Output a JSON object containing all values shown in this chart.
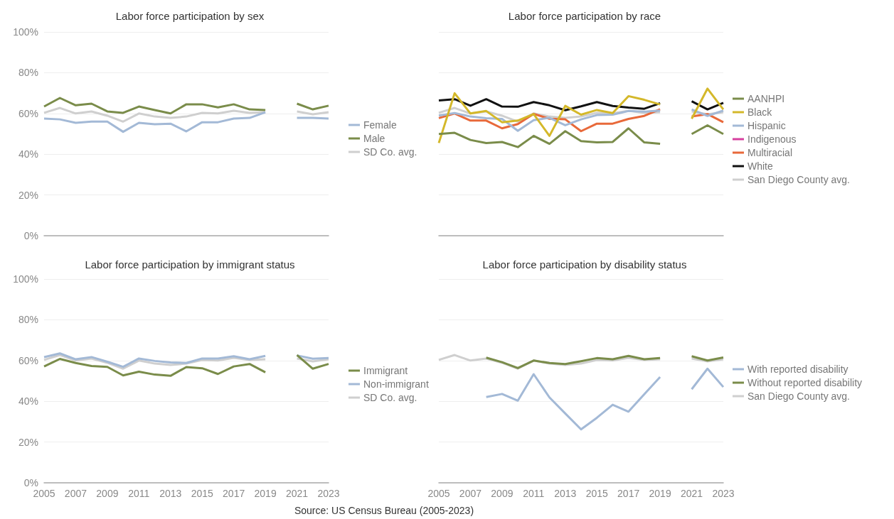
{
  "chart_data": [
    {
      "type": "line",
      "title": "Labor force participation by sex",
      "x": [
        2005,
        2006,
        2007,
        2008,
        2009,
        2010,
        2011,
        2012,
        2013,
        2014,
        2015,
        2016,
        2017,
        2018,
        2019,
        2020,
        2021,
        2022,
        2023
      ],
      "xlim": [
        2005,
        2023
      ],
      "xticks": [
        2005,
        2007,
        2009,
        2011,
        2013,
        2015,
        2017,
        2019,
        2021,
        2023
      ],
      "ylim": [
        0,
        100
      ],
      "yticks": [
        {
          "value": 0,
          "label": "0%"
        },
        {
          "value": 20,
          "label": "20%"
        },
        {
          "value": 40,
          "label": "40%"
        },
        {
          "value": 60,
          "label": "60%"
        },
        {
          "value": 80,
          "label": "80%"
        },
        {
          "value": 100,
          "label": "100%"
        }
      ],
      "tick_labels": "y",
      "grid": "y",
      "legend": "right",
      "marker": "none",
      "line_style": "solid",
      "series": [
        {
          "name": "Female",
          "color": "#a3b9d6",
          "values": [
            57.5,
            57.1,
            55.4,
            56,
            56,
            51,
            55.4,
            54.7,
            55,
            51.2,
            55.7,
            55.7,
            57.5,
            57.8,
            60.6,
            null,
            57.8,
            57.8,
            57.5
          ]
        },
        {
          "name": "Male",
          "color": "#7a8c4a",
          "values": [
            63.4,
            67.6,
            64,
            64.8,
            61,
            60.3,
            63.4,
            61.7,
            60,
            64.5,
            64.5,
            63,
            64.5,
            62,
            61.7,
            null,
            64.8,
            62,
            63.8
          ]
        },
        {
          "name": "SD Co. avg.",
          "color": "#cfcfcf",
          "values": [
            60.3,
            62.7,
            60,
            61,
            58.9,
            56,
            60,
            58.5,
            57.8,
            58.5,
            60.3,
            60,
            61.3,
            60.3,
            60.6,
            null,
            61,
            59.6,
            60.6
          ]
        }
      ]
    },
    {
      "type": "line",
      "title": "Labor force participation by race",
      "x": [
        2005,
        2006,
        2007,
        2008,
        2009,
        2010,
        2011,
        2012,
        2013,
        2014,
        2015,
        2016,
        2017,
        2018,
        2019,
        2020,
        2021,
        2022,
        2023
      ],
      "xlim": [
        2005,
        2023
      ],
      "xticks": [
        2005,
        2007,
        2009,
        2011,
        2013,
        2015,
        2017,
        2019,
        2021,
        2023
      ],
      "ylim": [
        0,
        100
      ],
      "yticks": [
        {
          "value": 0,
          "label": null
        },
        {
          "value": 20,
          "label": null
        },
        {
          "value": 40,
          "label": null
        },
        {
          "value": 60,
          "label": null
        },
        {
          "value": 80,
          "label": null
        },
        {
          "value": 100,
          "label": null
        }
      ],
      "tick_labels": false,
      "grid": "y",
      "legend": "right",
      "marker": "none",
      "line_style": "solid",
      "series": [
        {
          "name": "AANHPI",
          "color": "#7a8c4a",
          "values": [
            49.9,
            50.5,
            47,
            45.5,
            46,
            43.5,
            49,
            45.1,
            51.3,
            46.4,
            45.8,
            46,
            52.7,
            45.8,
            45.1,
            null,
            49.9,
            54.2,
            49.9
          ]
        },
        {
          "name": "Black",
          "color": "#d4b82a",
          "values": [
            45.5,
            69.9,
            60,
            61.2,
            55.7,
            56.5,
            59.7,
            49,
            63.7,
            59.4,
            61.7,
            60.2,
            68.5,
            66.7,
            64.4,
            null,
            57.4,
            72.2,
            62
          ]
        },
        {
          "name": "Hispanic",
          "color": "#a3b9d6",
          "values": [
            59,
            60.2,
            58.5,
            57.7,
            57.3,
            51.5,
            56.7,
            57.9,
            54.2,
            57.1,
            59.2,
            59.4,
            61.2,
            60.9,
            61.4,
            null,
            62,
            58.8,
            61.4
          ]
        },
        {
          "name": "Indigenous",
          "color": "#d6409f",
          "values": [
            null,
            null,
            null,
            null,
            null,
            null,
            null,
            null,
            null,
            null,
            null,
            null,
            null,
            null,
            null,
            null,
            null,
            null,
            null
          ]
        },
        {
          "name": "Multiracial",
          "color": "#e8693a",
          "values": [
            57.7,
            60,
            56.5,
            56.5,
            52.7,
            54.8,
            59.8,
            57.4,
            57.1,
            51.3,
            55,
            55,
            57.3,
            58.8,
            62.1,
            null,
            58.5,
            59.7,
            55.7
          ]
        },
        {
          "name": "White",
          "color": "#111111",
          "values": [
            66.4,
            67,
            63.8,
            67,
            63.4,
            63.3,
            65.6,
            64,
            61.6,
            63.5,
            65.6,
            63.7,
            62.9,
            62.3,
            65,
            null,
            66,
            62,
            65.2
          ]
        },
        {
          "name": "San Diego County avg.",
          "color": "#cfcfcf",
          "values": [
            60.3,
            62.7,
            60,
            61,
            58.9,
            56,
            60,
            58.5,
            57.8,
            58.5,
            60.3,
            60,
            61.3,
            60.3,
            60.6,
            null,
            61,
            59.6,
            60.6
          ]
        }
      ]
    },
    {
      "type": "line",
      "title": "Labor force participation by immigrant status",
      "x": [
        2005,
        2006,
        2007,
        2008,
        2009,
        2010,
        2011,
        2012,
        2013,
        2014,
        2015,
        2016,
        2017,
        2018,
        2019,
        2020,
        2021,
        2022,
        2023
      ],
      "xlim": [
        2005,
        2023
      ],
      "xticks": [
        2005,
        2007,
        2009,
        2011,
        2013,
        2015,
        2017,
        2019,
        2021,
        2023
      ],
      "ylim": [
        0,
        100
      ],
      "yticks": [
        {
          "value": 0,
          "label": "0%"
        },
        {
          "value": 20,
          "label": "20%"
        },
        {
          "value": 40,
          "label": "40%"
        },
        {
          "value": 60,
          "label": "60%"
        },
        {
          "value": 80,
          "label": "80%"
        },
        {
          "value": 100,
          "label": "100%"
        }
      ],
      "grid": "y",
      "legend": "right",
      "marker": "none",
      "line_style": "solid",
      "series": [
        {
          "name": "Immigrant",
          "color": "#7a8c4a",
          "values": [
            57.1,
            60.8,
            58.8,
            57.3,
            56.9,
            52.7,
            54.5,
            53.1,
            52.5,
            56.8,
            56.2,
            53.4,
            57.1,
            58.3,
            54.2,
            null,
            62.7,
            56,
            58.3
          ]
        },
        {
          "name": "Non-immigrant",
          "color": "#a3b9d6",
          "values": [
            61.7,
            63.5,
            60.6,
            61.7,
            59.4,
            56.9,
            61,
            59.8,
            59.1,
            58.8,
            61,
            61,
            62.1,
            60.6,
            62.3,
            null,
            62.5,
            60.9,
            61.2
          ]
        },
        {
          "name": "SD Co. avg.",
          "color": "#cfcfcf",
          "values": [
            60.3,
            62.7,
            60,
            61,
            58.9,
            56,
            60,
            58.5,
            57.8,
            58.5,
            60.3,
            60,
            61.3,
            60.3,
            60.6,
            null,
            61,
            59.6,
            60.6
          ]
        }
      ]
    },
    {
      "type": "line",
      "title": "Labor force participation by disability status",
      "x": [
        2005,
        2006,
        2007,
        2008,
        2009,
        2010,
        2011,
        2012,
        2013,
        2014,
        2015,
        2016,
        2017,
        2018,
        2019,
        2020,
        2021,
        2022,
        2023
      ],
      "xlim": [
        2005,
        2023
      ],
      "xticks": [
        2005,
        2007,
        2009,
        2011,
        2013,
        2015,
        2017,
        2019,
        2021,
        2023
      ],
      "ylim": [
        0,
        100
      ],
      "yticks": [
        {
          "value": 0,
          "label": null
        },
        {
          "value": 20,
          "label": null
        },
        {
          "value": 40,
          "label": null
        },
        {
          "value": 60,
          "label": null
        },
        {
          "value": 80,
          "label": null
        },
        {
          "value": 100,
          "label": null
        }
      ],
      "tick_labels": "x",
      "grid": "y",
      "legend": "right",
      "marker": "none",
      "line_style": "solid",
      "annotations": [
        "Source: US Census Bureau (2005-2023)"
      ],
      "series": [
        {
          "name": "With reported disability",
          "color": "#a3b9d6",
          "values": [
            null,
            null,
            null,
            42.1,
            43.6,
            40.3,
            53.3,
            41.9,
            34,
            26.2,
            31.9,
            38.3,
            34.9,
            43.5,
            51.9,
            null,
            45.9,
            56,
            47
          ]
        },
        {
          "name": "Without reported disability",
          "color": "#7a8c4a",
          "values": [
            null,
            null,
            null,
            61.4,
            59.2,
            56.3,
            60,
            58.8,
            58.3,
            59.7,
            61.2,
            60.6,
            62.3,
            60.6,
            61.2,
            null,
            62.1,
            60,
            61.5
          ]
        },
        {
          "name": "San Diego County avg.",
          "color": "#cfcfcf",
          "values": [
            60.3,
            62.7,
            60,
            61,
            58.9,
            56,
            60,
            58.5,
            57.8,
            58.5,
            60.3,
            60,
            61.3,
            60.3,
            60.6,
            null,
            61,
            59.6,
            60.6
          ]
        }
      ]
    }
  ]
}
